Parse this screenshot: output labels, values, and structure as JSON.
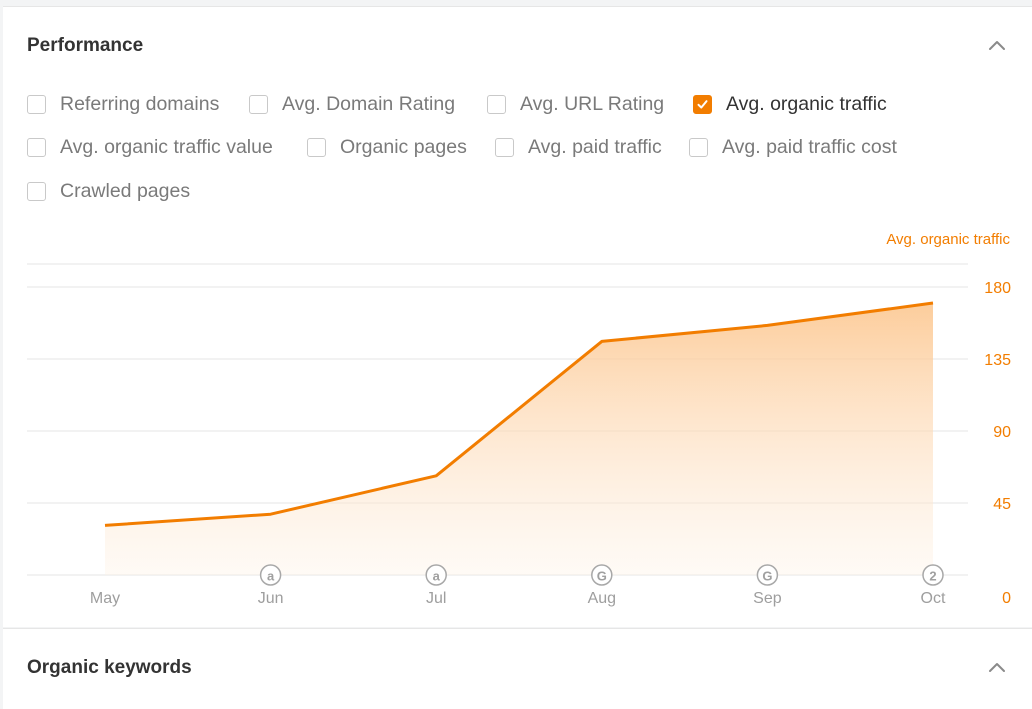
{
  "performance": {
    "title": "Performance",
    "collapse_icon": "chevron-up-icon",
    "metrics": [
      {
        "label": "Referring domains",
        "checked": false
      },
      {
        "label": "Avg. Domain Rating",
        "checked": false
      },
      {
        "label": "Avg. URL Rating",
        "checked": false
      },
      {
        "label": "Avg. organic traffic",
        "checked": true
      },
      {
        "label": "Avg. organic traffic value",
        "checked": false
      },
      {
        "label": "Organic pages",
        "checked": false
      },
      {
        "label": "Avg. paid traffic",
        "checked": false
      },
      {
        "label": "Avg. paid traffic cost",
        "checked": false
      },
      {
        "label": "Crawled pages",
        "checked": false
      }
    ]
  },
  "chart_data": {
    "type": "area",
    "axis_title": "Avg. organic traffic",
    "categories": [
      "May",
      "Jun",
      "Jul",
      "Aug",
      "Sep",
      "Oct"
    ],
    "series": [
      {
        "name": "Avg. organic traffic",
        "values": [
          31,
          38,
          62,
          146,
          156,
          170
        ],
        "color": "#f27d00"
      }
    ],
    "y_ticks": [
      "0",
      "45",
      "90",
      "135",
      "180"
    ],
    "ylim": [
      0,
      180
    ],
    "y_axis_position": "right",
    "grid": true,
    "annotations": [
      {
        "category": "Jun",
        "label": "a"
      },
      {
        "category": "Jul",
        "label": "a"
      },
      {
        "category": "Aug",
        "label": "G"
      },
      {
        "category": "Sep",
        "label": "G"
      },
      {
        "category": "Oct",
        "label": "2"
      }
    ]
  },
  "organic_keywords": {
    "title": "Organic keywords",
    "collapse_icon": "chevron-up-icon"
  },
  "colors": {
    "accent": "#f27d00",
    "grid": "#e6e6e6",
    "muted_text": "#9e9e9e"
  }
}
